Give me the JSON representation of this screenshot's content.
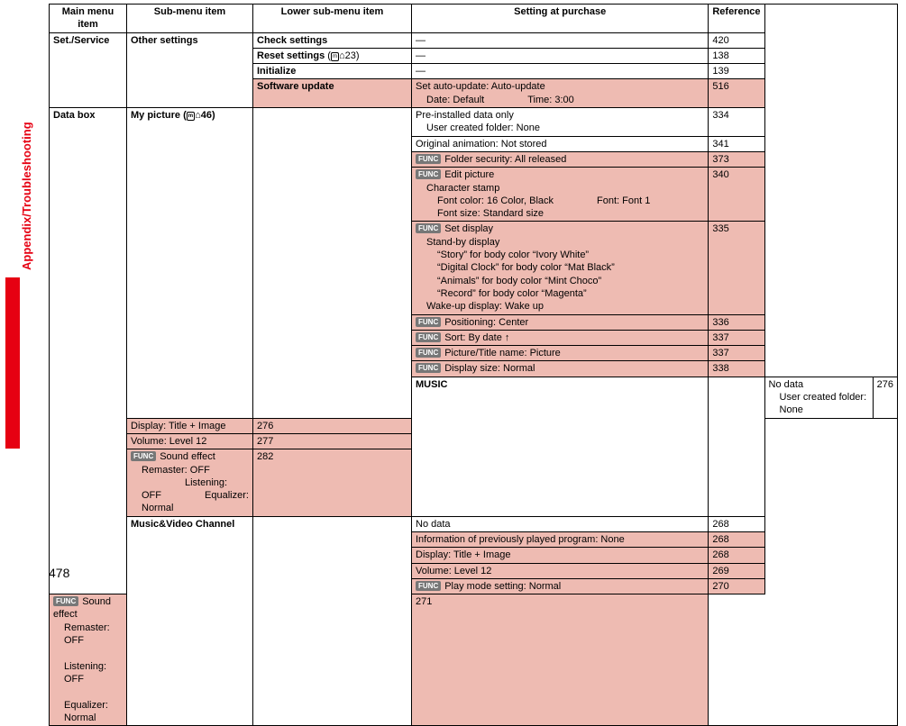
{
  "sideLabel": "Appendix/Troubleshooting",
  "pageNum": "478",
  "headers": {
    "c1": "Main menu item",
    "c2": "Sub-menu item",
    "c3": "Lower sub-menu item",
    "c4": "Setting at purchase",
    "c5": "Reference"
  },
  "rows": [
    {
      "main": "Set./Service",
      "mainRowspan": 4,
      "sub": "Other settings",
      "subRowspan": 4,
      "subBold": true,
      "lower": "Check settings",
      "lowerBold": true,
      "setting": "—",
      "settingCenter": true,
      "ref": "420"
    },
    {
      "lower": "Reset settings (⌂23)",
      "lowerBold": true,
      "lowerMenu": true,
      "setting": "—",
      "settingCenter": true,
      "ref": "138"
    },
    {
      "lower": "Initialize",
      "lowerBold": true,
      "setting": "—",
      "settingCenter": true,
      "ref": "139"
    },
    {
      "lower": "Software update",
      "lowerBold": true,
      "pink": true,
      "settingLines": [
        "Set auto-update: Auto-update",
        {
          "indent": 1,
          "parts": [
            "Date: Default",
            "Time: 3:00"
          ],
          "gap": true
        }
      ],
      "ref": "516"
    },
    {
      "main": "Data box",
      "mainRowspan": 18,
      "sub": "My picture (⌂46)",
      "subRowspan": 10,
      "subBold": true,
      "subMenu": true,
      "lowerEmpty": true,
      "settingLines": [
        "Pre-installed data only",
        {
          "indent": 1,
          "text": "User created folder: None"
        }
      ],
      "ref": "334"
    },
    {
      "lowerEmptyCont": true,
      "setting": "Original animation: Not stored",
      "ref": "341"
    },
    {
      "lowerEmptyCont": true,
      "pink": true,
      "func": true,
      "setting": "Folder security: All released",
      "ref": "373"
    },
    {
      "lowerEmptyCont": true,
      "pink": true,
      "func": true,
      "settingLines": [
        "Edit picture",
        {
          "indent": 1,
          "text": "Character stamp"
        },
        {
          "indent": 2,
          "parts": [
            "Font color: 16 Color, Black",
            "Font: Font 1",
            "Font size: Standard size"
          ],
          "gap": true
        }
      ],
      "ref": "340"
    },
    {
      "lowerEmptyCont": true,
      "pink": true,
      "func": true,
      "settingLines": [
        "Set display",
        {
          "indent": 1,
          "text": "Stand-by display"
        },
        {
          "indent": 2,
          "text": "“Story” for body color “Ivory White”"
        },
        {
          "indent": 2,
          "text": "“Digital Clock” for body color “Mat Black”"
        },
        {
          "indent": 2,
          "text": "“Animals” for body color “Mint Choco”"
        },
        {
          "indent": 2,
          "text": "“Record” for body color “Magenta”"
        },
        {
          "indent": 1,
          "text": "Wake-up display: Wake up"
        }
      ],
      "ref": "335"
    },
    {
      "lowerEmptyCont": true,
      "pink": true,
      "func": true,
      "setting": "Positioning: Center",
      "ref": "336"
    },
    {
      "lowerEmptyCont": true,
      "pink": true,
      "func": true,
      "setting": "Sort: By date ↑",
      "ref": "337"
    },
    {
      "lowerEmptyCont": true,
      "pink": true,
      "func": true,
      "setting": "Picture/Title name: Picture",
      "ref": "337"
    },
    {
      "lowerEmptyCont": true,
      "pink": true,
      "func": true,
      "setting": "Display size: Normal",
      "ref": "338"
    },
    {
      "sub": "MUSIC",
      "subRowspan": 4,
      "subBold": true,
      "lowerEmpty": true,
      "settingLines": [
        "No data",
        {
          "indent": 1,
          "text": "User created folder: None"
        }
      ],
      "ref": "276"
    },
    {
      "lowerEmptyCont": true,
      "pink": true,
      "setting": "Display: Title + Image",
      "ref": "276"
    },
    {
      "lowerEmptyCont": true,
      "pink": true,
      "setting": "Volume: Level 12",
      "ref": "277"
    },
    {
      "lowerEmptyCont": true,
      "pink": true,
      "func": true,
      "settingLines": [
        "Sound effect",
        {
          "indent": 1,
          "parts": [
            "Remaster: OFF",
            "Listening: OFF",
            "Equalizer: Normal"
          ],
          "gap": true
        }
      ],
      "ref": "282"
    },
    {
      "sub": "Music&Video Channel",
      "subRowspan": 6,
      "subBold": true,
      "lowerEmpty": true,
      "setting": "No data",
      "ref": "268"
    },
    {
      "lowerEmptyCont": true,
      "pink": true,
      "setting": "Information of previously played program: None",
      "ref": "268"
    },
    {
      "lowerEmptyCont": true,
      "pink": true,
      "setting": "Display: Title + Image",
      "ref": "268"
    },
    {
      "lowerEmptyCont": true,
      "pink": true,
      "setting": "Volume: Level 12",
      "ref": "269"
    },
    {
      "lowerEmptyCont": true,
      "pink": true,
      "func": true,
      "setting": "Play mode setting: Normal",
      "ref": "270"
    },
    {
      "lowerEmptyCont": true,
      "pink": true,
      "func": true,
      "settingLines": [
        "Sound effect",
        {
          "indent": 1,
          "parts": [
            "Remaster: OFF",
            "Listening: OFF",
            "Equalizer: Normal"
          ],
          "gap": true
        }
      ],
      "ref": "271"
    }
  ]
}
